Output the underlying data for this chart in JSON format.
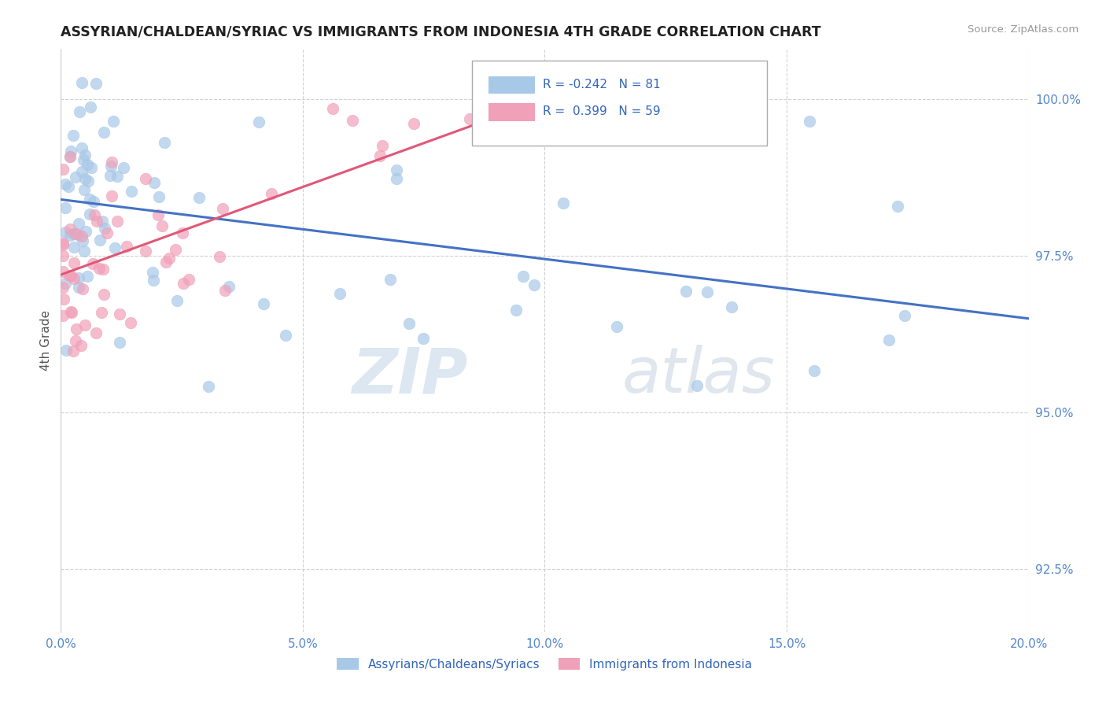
{
  "title": "ASSYRIAN/CHALDEAN/SYRIAC VS IMMIGRANTS FROM INDONESIA 4TH GRADE CORRELATION CHART",
  "source_text": "Source: ZipAtlas.com",
  "ylabel": "4th Grade",
  "x_min": 0.0,
  "x_max": 0.2,
  "y_min": 0.915,
  "y_max": 1.008,
  "x_tick_labels": [
    "0.0%",
    "5.0%",
    "10.0%",
    "15.0%",
    "20.0%"
  ],
  "x_tick_vals": [
    0.0,
    0.05,
    0.1,
    0.15,
    0.2
  ],
  "y_tick_labels": [
    "92.5%",
    "95.0%",
    "97.5%",
    "100.0%"
  ],
  "y_tick_vals": [
    0.925,
    0.95,
    0.975,
    1.0
  ],
  "blue_color": "#a8c8e8",
  "pink_color": "#f0a0b8",
  "blue_line_color": "#4472c4",
  "pink_line_color": "#e05878",
  "watermark_zip": "ZIP",
  "watermark_atlas": "atlas",
  "background_color": "#ffffff",
  "grid_color": "#cccccc",
  "blue_trend_x": [
    0.0,
    0.2
  ],
  "blue_trend_y": [
    0.984,
    0.965
  ],
  "pink_trend_x": [
    0.0,
    0.1
  ],
  "pink_trend_y": [
    0.972,
    1.0
  ],
  "legend_label_blue": "Assyrians/Chaldeans/Syriacs",
  "legend_label_pink": "Immigrants from Indonesia",
  "r_blue": "R = -0.242",
  "n_blue": "N = 81",
  "r_pink": "R =  0.399",
  "n_pink": "N = 59"
}
